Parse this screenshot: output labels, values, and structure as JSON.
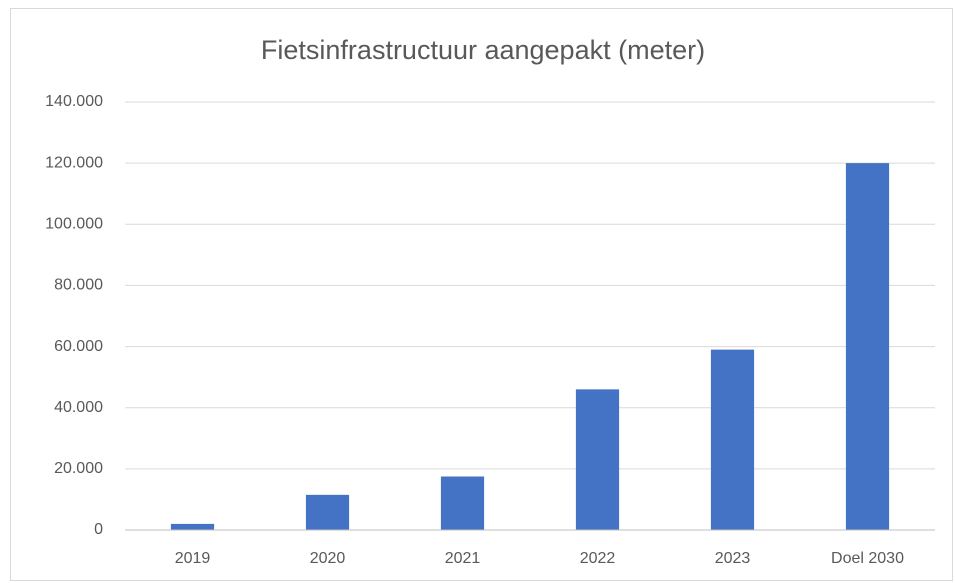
{
  "chart_data": {
    "type": "bar",
    "title": "Fietsinfrastructuur aangepakt (meter)",
    "categories": [
      "2019",
      "2020",
      "2021",
      "2022",
      "2023",
      "Doel 2030"
    ],
    "values": [
      2000,
      11500,
      17500,
      46000,
      59000,
      120000
    ],
    "color": "#4472c4",
    "ylim": [
      0,
      140000
    ],
    "yticks": [
      0,
      {
        "value": 20000,
        "label": "20.000"
      },
      {
        "value": 40000,
        "label": "40.000"
      },
      {
        "value": 60000,
        "label": "60.000"
      },
      {
        "value": 80000,
        "label": "80.000"
      },
      {
        "value": 100000,
        "label": "100.000"
      },
      {
        "value": 120000,
        "label": "120.000"
      },
      {
        "value": 140000,
        "label": "140.000"
      }
    ],
    "grid": true
  }
}
